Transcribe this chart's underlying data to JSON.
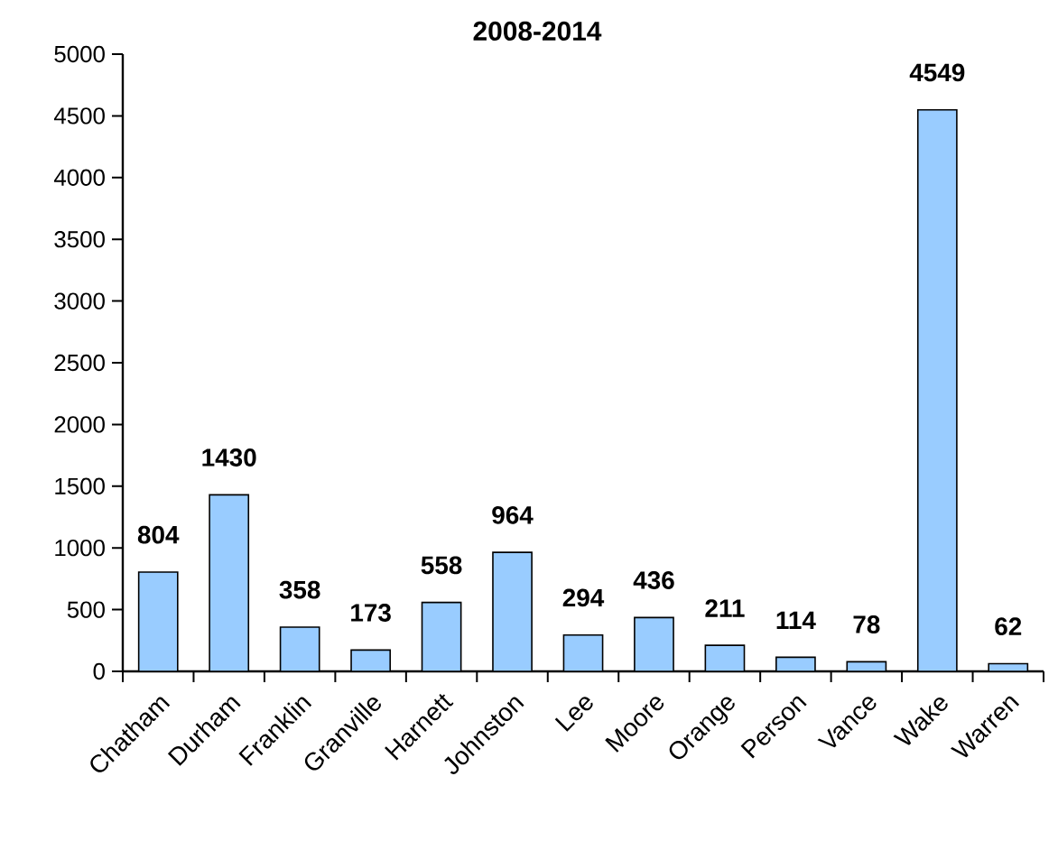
{
  "chart_data": {
    "type": "bar",
    "title": "2008-2014",
    "categories": [
      "Chatham",
      "Durham",
      "Franklin",
      "Granville",
      "Harnett",
      "Johnston",
      "Lee",
      "Moore",
      "Orange",
      "Person",
      "Vance",
      "Wake",
      "Warren"
    ],
    "values": [
      804,
      1430,
      358,
      173,
      558,
      964,
      294,
      436,
      211,
      114,
      78,
      4549,
      62
    ],
    "color": "#99ccff",
    "ylim": [
      0,
      5000
    ],
    "yticks": [
      0,
      500,
      1000,
      1500,
      2000,
      2500,
      3000,
      3500,
      4000,
      4500,
      5000
    ],
    "data_labels": true
  }
}
